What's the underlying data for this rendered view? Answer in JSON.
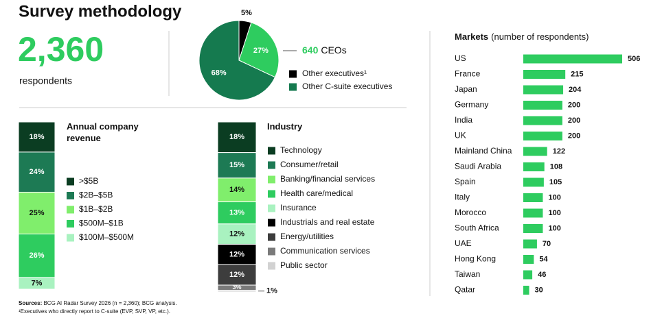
{
  "title": "Survey methodology",
  "headline": "2,360",
  "headline_label": "respondents",
  "chart_data": [
    {
      "type": "pie",
      "categories": [
        "Other executives¹",
        "CEOs",
        "Other C-suite executives"
      ],
      "values": [
        5,
        27,
        68
      ],
      "value_labels": [
        "5%",
        "27%",
        "68%"
      ],
      "counts": [
        null,
        640,
        null
      ],
      "colors": [
        "#000000",
        "#2ecc5f",
        "#157a4f"
      ]
    },
    {
      "type": "stacked-bar",
      "title": "Annual company revenue",
      "ylim": [
        0,
        100
      ],
      "series": [
        {
          "name": ">$5B",
          "color": "#0b3d22",
          "values": [
            18
          ],
          "value_labels": [
            "18%"
          ]
        },
        {
          "name": "$2B–$5B",
          "color": "#1d7a54",
          "values": [
            24
          ],
          "value_labels": [
            "24%"
          ]
        },
        {
          "name": "$1B–$2B",
          "color": "#80ee6c",
          "values": [
            25
          ],
          "value_labels": [
            "25%"
          ]
        },
        {
          "name": "$500M–$1B",
          "color": "#2ecc5f",
          "values": [
            26
          ],
          "value_labels": [
            "26%"
          ]
        },
        {
          "name": "$100M–$500M",
          "color": "#a9f2c0",
          "values": [
            7
          ],
          "value_labels": [
            "7%"
          ]
        }
      ]
    },
    {
      "type": "stacked-bar",
      "title": "Industry",
      "ylim": [
        0,
        100
      ],
      "series": [
        {
          "name": "Technology",
          "color": "#0b3d22",
          "values": [
            18
          ],
          "value_labels": [
            "18%"
          ]
        },
        {
          "name": "Consumer/retail",
          "color": "#1d7a54",
          "values": [
            15
          ],
          "value_labels": [
            "15%"
          ]
        },
        {
          "name": "Banking/financial services",
          "color": "#80ee6c",
          "values": [
            14
          ],
          "value_labels": [
            "14%"
          ]
        },
        {
          "name": "Health care/medical",
          "color": "#2ecc5f",
          "values": [
            13
          ],
          "value_labels": [
            "13%"
          ]
        },
        {
          "name": "Insurance",
          "color": "#a9f2c0",
          "values": [
            12
          ],
          "value_labels": [
            "12%"
          ]
        },
        {
          "name": "Industrials and real estate",
          "color": "#000000",
          "values": [
            12
          ],
          "value_labels": [
            "12%"
          ]
        },
        {
          "name": "Energy/utilities",
          "color": "#3d3d3d",
          "values": [
            12
          ],
          "value_labels": [
            "12%"
          ]
        },
        {
          "name": "Communication services",
          "color": "#7a7a7a",
          "values": [
            3
          ],
          "value_labels": [
            "3%"
          ]
        },
        {
          "name": "Public sector",
          "color": "#d2d2d2",
          "values": [
            1
          ],
          "value_labels": [
            "1%"
          ]
        }
      ]
    },
    {
      "type": "hbar",
      "title": "Markets",
      "subtitle": "(number of respondents)",
      "color": "#2ecc5f",
      "xlim": [
        0,
        506
      ],
      "categories": [
        "US",
        "France",
        "Japan",
        "Germany",
        "India",
        "UK",
        "Mainland China",
        "Saudi Arabia",
        "Spain",
        "Italy",
        "Morocco",
        "South Africa",
        "UAE",
        "Hong Kong",
        "Taiwan",
        "Qatar"
      ],
      "values": [
        506,
        215,
        204,
        200,
        200,
        200,
        122,
        108,
        105,
        100,
        100,
        100,
        70,
        54,
        46,
        30
      ]
    }
  ],
  "footnotes": {
    "sources_label": "Sources:",
    "sources": "BCG AI Radar Survey 2026 (n = 2,360); BCG analysis.",
    "note": "¹Executives who directly report to C-suite (EVP, SVP, VP, etc.)."
  }
}
